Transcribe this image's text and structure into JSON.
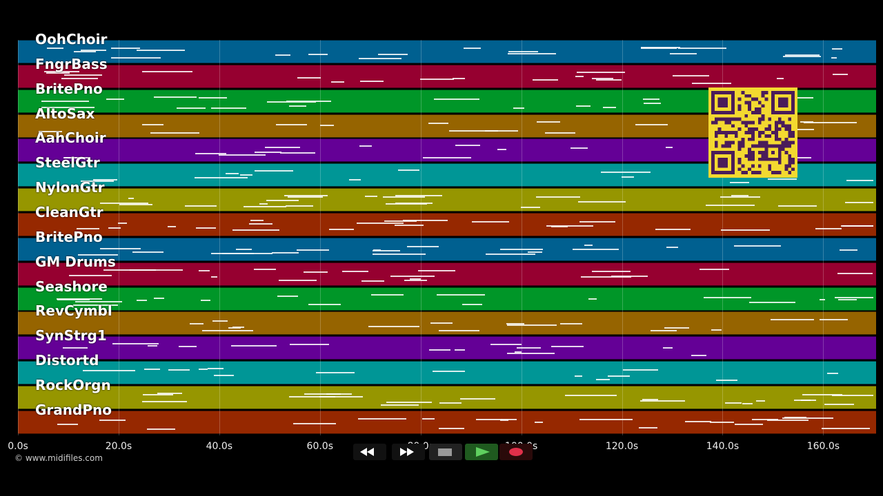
{
  "tracks": [
    {
      "name": "OohChoir",
      "color": "#006090"
    },
    {
      "name": "FngrBass",
      "color": "#960030"
    },
    {
      "name": "BritePno",
      "color": "#009628"
    },
    {
      "name": "AltoSax",
      "color": "#966400"
    },
    {
      "name": "AahChoir",
      "color": "#640096"
    },
    {
      "name": "SteelGtr",
      "color": "#009696"
    },
    {
      "name": "NylonGtr",
      "color": "#969600"
    },
    {
      "name": "CleanGtr",
      "color": "#962800"
    },
    {
      "name": "BritePno",
      "color": "#006090"
    },
    {
      "name": "GM Drums",
      "color": "#960030"
    },
    {
      "name": "Seashore",
      "color": "#009628"
    },
    {
      "name": "RevCymbl",
      "color": "#966400"
    },
    {
      "name": "SynStrg1",
      "color": "#640096"
    },
    {
      "name": "Distortd",
      "color": "#009696"
    },
    {
      "name": "RockOrgn",
      "color": "#969600"
    },
    {
      "name": "GrandPno",
      "color": "#962800"
    }
  ],
  "timeline": {
    "max_seconds": 170.5,
    "ticks": [
      "0.0s",
      "20.0s",
      "40.0s",
      "60.0s",
      "80.0s",
      "100.0s",
      "120.0s",
      "140.0s",
      "160.0s"
    ]
  },
  "copyright": "© www.midifiles.com",
  "transport": {
    "buttons": [
      {
        "name": "rewind-button",
        "icon": "rewind-icon"
      },
      {
        "name": "fast-forward-button",
        "icon": "fast-forward-icon"
      },
      {
        "name": "stop-button",
        "icon": "stop-icon"
      },
      {
        "name": "play-button",
        "icon": "play-icon"
      },
      {
        "name": "record-button",
        "icon": "record-icon"
      }
    ]
  },
  "qr_code": {
    "icon": "qr-code-icon",
    "color": "#f3d930"
  }
}
